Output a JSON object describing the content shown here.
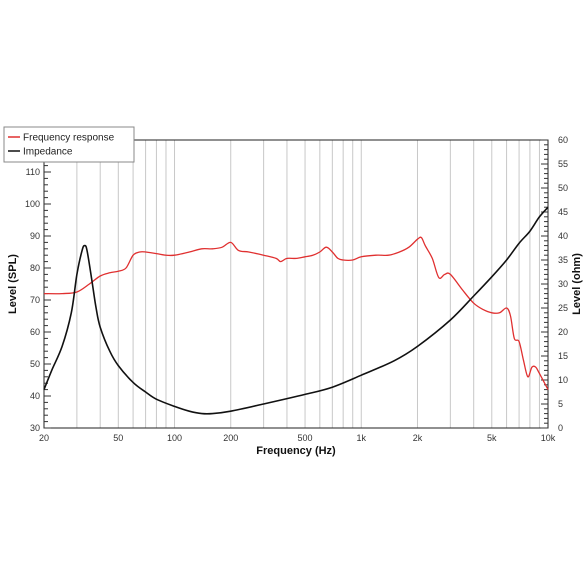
{
  "chart_data": {
    "type": "line",
    "xlabel": "Frequency (Hz)",
    "ylabel": "Level (SPL)",
    "y2label": "Level (ohm)",
    "xscale": "log",
    "xlim": [
      20,
      10000
    ],
    "ylim": [
      30,
      120
    ],
    "y2lim": [
      0,
      60
    ],
    "grid": true,
    "legend_position": "top-left",
    "x_ticks": [
      {
        "value": 20,
        "label": "20"
      },
      {
        "value": 50,
        "label": "50"
      },
      {
        "value": 100,
        "label": "100"
      },
      {
        "value": 200,
        "label": "200"
      },
      {
        "value": 500,
        "label": "500"
      },
      {
        "value": 1000,
        "label": "1k"
      },
      {
        "value": 2000,
        "label": "2k"
      },
      {
        "value": 5000,
        "label": "5k"
      },
      {
        "value": 10000,
        "label": "10k"
      }
    ],
    "y_ticks": [
      "30",
      "40",
      "50",
      "60",
      "70",
      "80",
      "90",
      "100",
      "110",
      "120"
    ],
    "y2_ticks": [
      "0",
      "5",
      "10",
      "15",
      "20",
      "25",
      "30",
      "35",
      "40",
      "45",
      "50",
      "55",
      "60"
    ],
    "series": [
      {
        "name": "Frequency response",
        "color": "#e03030",
        "axis": "left",
        "points": [
          [
            20,
            72
          ],
          [
            25,
            72
          ],
          [
            30,
            72.5
          ],
          [
            35,
            75
          ],
          [
            40,
            77.5
          ],
          [
            45,
            78.5
          ],
          [
            50,
            79
          ],
          [
            55,
            80
          ],
          [
            60,
            84
          ],
          [
            65,
            85
          ],
          [
            70,
            85
          ],
          [
            80,
            84.5
          ],
          [
            90,
            84
          ],
          [
            100,
            84
          ],
          [
            120,
            85
          ],
          [
            140,
            86
          ],
          [
            160,
            86
          ],
          [
            180,
            86.5
          ],
          [
            200,
            88
          ],
          [
            220,
            85.5
          ],
          [
            250,
            85
          ],
          [
            300,
            84
          ],
          [
            350,
            83
          ],
          [
            370,
            82
          ],
          [
            400,
            83
          ],
          [
            450,
            83
          ],
          [
            500,
            83.5
          ],
          [
            550,
            84
          ],
          [
            600,
            85
          ],
          [
            650,
            86.5
          ],
          [
            700,
            85
          ],
          [
            750,
            83
          ],
          [
            800,
            82.5
          ],
          [
            900,
            82.5
          ],
          [
            1000,
            83.5
          ],
          [
            1200,
            84
          ],
          [
            1400,
            84
          ],
          [
            1600,
            85
          ],
          [
            1800,
            86.5
          ],
          [
            2000,
            89
          ],
          [
            2100,
            89.5
          ],
          [
            2200,
            87
          ],
          [
            2400,
            83
          ],
          [
            2600,
            77
          ],
          [
            2800,
            78
          ],
          [
            3000,
            78
          ],
          [
            3500,
            73
          ],
          [
            4000,
            69
          ],
          [
            4500,
            67
          ],
          [
            5000,
            66
          ],
          [
            5500,
            66
          ],
          [
            6000,
            67.5
          ],
          [
            6300,
            65
          ],
          [
            6600,
            58
          ],
          [
            7000,
            57
          ],
          [
            7400,
            51
          ],
          [
            7800,
            46
          ],
          [
            8200,
            49
          ],
          [
            8600,
            49
          ],
          [
            9000,
            47
          ],
          [
            10000,
            42
          ]
        ]
      },
      {
        "name": "Impedance",
        "color": "#111111",
        "axis": "right",
        "points": [
          [
            20,
            8
          ],
          [
            22,
            12
          ],
          [
            25,
            17
          ],
          [
            28,
            24
          ],
          [
            30,
            32
          ],
          [
            32,
            37
          ],
          [
            33,
            38
          ],
          [
            34,
            37
          ],
          [
            36,
            31
          ],
          [
            38,
            25
          ],
          [
            40,
            21
          ],
          [
            45,
            16
          ],
          [
            50,
            13
          ],
          [
            60,
            9.5
          ],
          [
            70,
            7.5
          ],
          [
            80,
            6
          ],
          [
            100,
            4.5
          ],
          [
            120,
            3.5
          ],
          [
            140,
            3
          ],
          [
            160,
            3
          ],
          [
            200,
            3.5
          ],
          [
            300,
            5
          ],
          [
            500,
            7
          ],
          [
            700,
            8.5
          ],
          [
            1000,
            11
          ],
          [
            1500,
            14
          ],
          [
            2000,
            17
          ],
          [
            3000,
            22.5
          ],
          [
            4000,
            27.5
          ],
          [
            5000,
            31.5
          ],
          [
            6000,
            35
          ],
          [
            7000,
            38.5
          ],
          [
            8000,
            41
          ],
          [
            9000,
            44
          ],
          [
            10000,
            46
          ]
        ]
      }
    ]
  }
}
